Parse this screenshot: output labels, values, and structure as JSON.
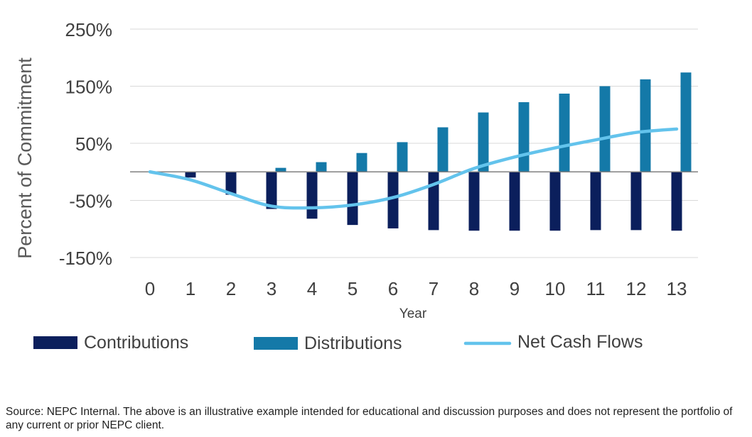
{
  "chart_data": {
    "type": "bar",
    "title": "",
    "xlabel": "Year",
    "ylabel": "Percent of Commitment",
    "x": [
      0,
      1,
      2,
      3,
      4,
      5,
      6,
      7,
      8,
      9,
      10,
      11,
      12,
      13
    ],
    "ylim": [
      -150,
      250
    ],
    "yticks": [
      250,
      150,
      50,
      -50,
      -150
    ],
    "ytick_labels": [
      "250%",
      "150%",
      "50%",
      "-50%",
      "-150%"
    ],
    "grid": "horizontal",
    "legend_position": "bottom",
    "series": [
      {
        "name": "Contributions",
        "type": "bar",
        "color": "#0b1f5c",
        "values": [
          0,
          -10,
          -40,
          -65,
          -82,
          -93,
          -99,
          -102,
          -103,
          -103,
          -103,
          -102,
          -102,
          -103
        ]
      },
      {
        "name": "Distributions",
        "type": "bar",
        "color": "#1479a8",
        "values": [
          0,
          0,
          0,
          7,
          17,
          33,
          52,
          78,
          104,
          122,
          137,
          150,
          162,
          174
        ]
      },
      {
        "name": "Net Cash Flows",
        "type": "line",
        "color": "#63c3ec",
        "values": [
          0,
          -14,
          -38,
          -60,
          -63,
          -58,
          -45,
          -22,
          6,
          26,
          42,
          56,
          69,
          75
        ]
      }
    ]
  },
  "footnote": "Source: NEPC Internal. The above is an illustrative example intended for educational and discussion purposes and does not represent the portfolio of any current or prior NEPC client."
}
